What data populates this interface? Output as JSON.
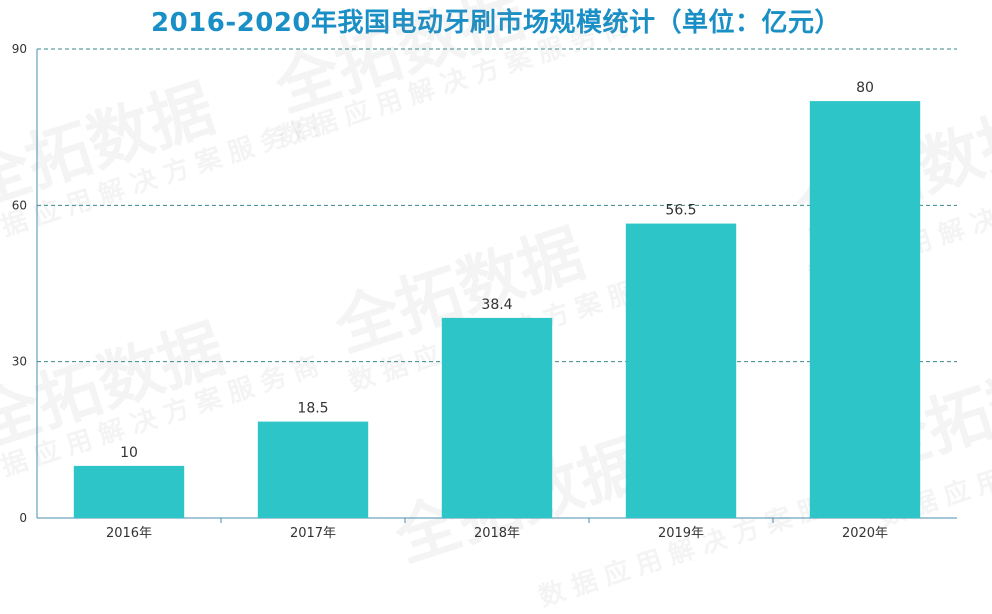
{
  "chart_data": {
    "type": "bar",
    "title": "2016-2020年我国电动牙刷市场规模统计（单位：亿元）",
    "categories": [
      "2016年",
      "2017年",
      "2018年",
      "2019年",
      "2020年"
    ],
    "values": [
      10,
      18.5,
      38.4,
      56.5,
      80
    ],
    "data_labels": [
      "10",
      "18.5",
      "38.4",
      "56.5",
      "80"
    ],
    "y_ticks": [
      "0",
      "30",
      "60",
      "90"
    ],
    "ylim": [
      0,
      90
    ],
    "grid": true,
    "colors": {
      "bar": "#2ec5c8",
      "title": "#1a8fc6",
      "grid": "#3a8a8a",
      "axis": "#4a8fb0"
    }
  },
  "watermark": {
    "brand": "全拓数据",
    "tagline": "数据应用解决方案服务商"
  }
}
